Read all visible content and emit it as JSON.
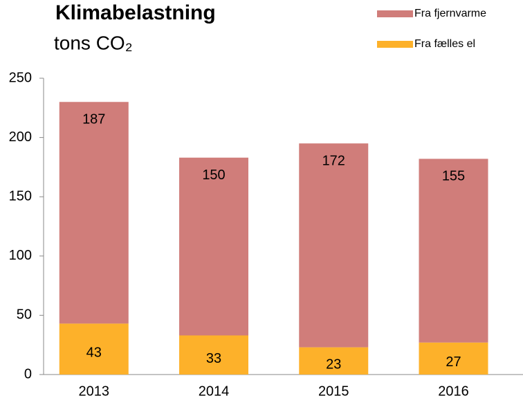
{
  "chart_data": {
    "type": "stacked_bar",
    "title": "Klimabelastning",
    "subtitle": "tons CO₂",
    "categories": [
      "2013",
      "2014",
      "2015",
      "2016"
    ],
    "series": [
      {
        "name": "Fra fælles el",
        "color": "#fdb12a",
        "values": [
          43,
          33,
          23,
          27
        ]
      },
      {
        "name": "Fra fjernvarme",
        "color": "#d07d7a",
        "values": [
          187,
          150,
          172,
          155
        ]
      }
    ],
    "ylim": [
      0,
      250
    ],
    "yticks": [
      0,
      50,
      100,
      150,
      200,
      250
    ]
  }
}
